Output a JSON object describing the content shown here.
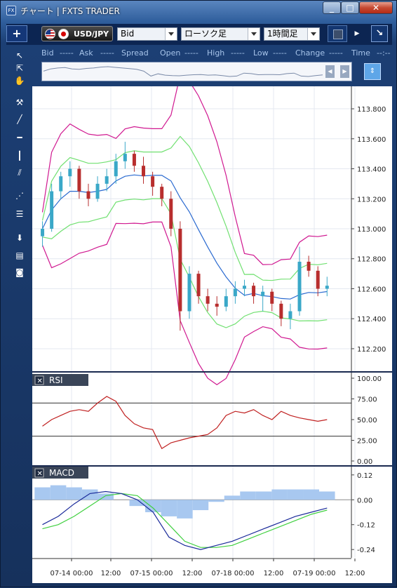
{
  "window": {
    "title": "チャート | FXTS TRADER",
    "icon_label": "FX"
  },
  "toolbar": {
    "add_label": "+",
    "symbol": "USD/JPY",
    "price_type": "Bid",
    "chart_type": "ローソク足",
    "timeframe": "1時間足",
    "arrow_label": "↘"
  },
  "quote_bar": {
    "bid_label": "Bid",
    "bid_value": "-----",
    "ask_label": "Ask",
    "ask_value": "-----",
    "spread_label": "Spread",
    "open_label": "Open",
    "open_value": "-----",
    "high_label": "High",
    "high_value": "-----",
    "low_label": "Low",
    "low_value": "-----",
    "change_label": "Change",
    "change_value": "-----",
    "time_label": "Time",
    "time_value": "--:--"
  },
  "colors": {
    "bull": "#3aa8c8",
    "bear": "#b82e2e",
    "bb_outer": "#d01890",
    "bb_inner": "#70e070",
    "ma": "#2a6ad0",
    "rsi": "#c02020",
    "macd": "#1a2a9a",
    "signal": "#40d040",
    "hist": "#a8c8f0"
  },
  "chart_data": {
    "type": "candlestick",
    "x_ticks": [
      "07-14 00:00",
      "12:00",
      "07-15 00:00",
      "12:00",
      "07-18 00:00",
      "12:00",
      "07-19 00:00",
      "12:00"
    ],
    "price": {
      "ylim": [
        112.05,
        113.95
      ],
      "y_ticks": [
        "113.800",
        "113.600",
        "113.400",
        "113.200",
        "113.000",
        "112.800",
        "112.600",
        "112.400",
        "112.200"
      ],
      "y_tick_values": [
        113.8,
        113.6,
        113.4,
        113.2,
        113.0,
        112.8,
        112.6,
        112.4,
        112.2
      ],
      "candles": [
        [
          112.95,
          113.05,
          112.88,
          113.0
        ],
        [
          113.0,
          113.3,
          112.98,
          113.25
        ],
        [
          113.25,
          113.38,
          113.2,
          113.35
        ],
        [
          113.35,
          113.45,
          113.28,
          113.4
        ],
        [
          113.4,
          113.42,
          113.2,
          113.25
        ],
        [
          113.25,
          113.3,
          113.15,
          113.2
        ],
        [
          113.2,
          113.35,
          113.18,
          113.3
        ],
        [
          113.3,
          113.4,
          113.25,
          113.35
        ],
        [
          113.35,
          113.5,
          113.3,
          113.45
        ],
        [
          113.45,
          113.58,
          113.4,
          113.5
        ],
        [
          113.5,
          113.52,
          113.38,
          113.42
        ],
        [
          113.42,
          113.48,
          113.3,
          113.35
        ],
        [
          113.35,
          113.38,
          113.22,
          113.28
        ],
        [
          113.28,
          113.3,
          113.15,
          113.2
        ],
        [
          113.2,
          113.25,
          112.95,
          113.0
        ],
        [
          113.0,
          113.05,
          112.32,
          112.45
        ],
        [
          112.45,
          112.75,
          112.4,
          112.7
        ],
        [
          112.7,
          112.72,
          112.5,
          112.55
        ],
        [
          112.55,
          112.6,
          112.45,
          112.5
        ],
        [
          112.5,
          112.55,
          112.42,
          112.48
        ],
        [
          112.48,
          112.6,
          112.45,
          112.55
        ],
        [
          112.55,
          112.65,
          112.5,
          112.6
        ],
        [
          112.6,
          112.66,
          112.55,
          112.62
        ],
        [
          112.62,
          112.64,
          112.5,
          112.55
        ],
        [
          112.55,
          112.62,
          112.45,
          112.58
        ],
        [
          112.58,
          112.6,
          112.45,
          112.5
        ],
        [
          112.5,
          112.52,
          112.35,
          112.4
        ],
        [
          112.4,
          112.5,
          112.33,
          112.45
        ],
        [
          112.45,
          112.88,
          112.42,
          112.78
        ],
        [
          112.78,
          112.82,
          112.68,
          112.72
        ],
        [
          112.72,
          112.75,
          112.55,
          112.6
        ],
        [
          112.6,
          112.68,
          112.55,
          112.62
        ]
      ]
    },
    "rsi": {
      "title": "RSI",
      "ylim": [
        0,
        100
      ],
      "y_ticks": [
        "100.00",
        "75.00",
        "50.00",
        "25.00",
        "0.00"
      ],
      "y_tick_values": [
        100,
        75,
        50,
        25,
        0
      ],
      "levels": [
        70,
        30
      ],
      "values": [
        42,
        50,
        55,
        60,
        62,
        60,
        70,
        78,
        72,
        55,
        45,
        40,
        38,
        15,
        22,
        25,
        28,
        30,
        32,
        40,
        55,
        60,
        58,
        62,
        55,
        50,
        60,
        55,
        52,
        50,
        48,
        50
      ]
    },
    "macd": {
      "title": "MACD",
      "ylim": [
        -0.28,
        0.16
      ],
      "y_ticks": [
        "0.12",
        "0.00",
        "-0.12",
        "-0.24"
      ],
      "y_tick_values": [
        0.12,
        0.0,
        -0.12,
        -0.24
      ],
      "macd": [
        -0.12,
        -0.08,
        -0.02,
        0.03,
        0.04,
        0.03,
        0.0,
        -0.06,
        -0.18,
        -0.22,
        -0.24,
        -0.22,
        -0.2,
        -0.17,
        -0.14,
        -0.11,
        -0.08,
        -0.06,
        -0.04
      ],
      "signal": [
        -0.14,
        -0.12,
        -0.08,
        -0.03,
        0.02,
        0.03,
        0.02,
        -0.04,
        -0.12,
        -0.2,
        -0.23,
        -0.23,
        -0.22,
        -0.19,
        -0.16,
        -0.13,
        -0.1,
        -0.07,
        -0.05
      ],
      "histogram": [
        0.06,
        0.07,
        0.06,
        0.05,
        0.03,
        0.0,
        -0.03,
        -0.06,
        -0.08,
        -0.09,
        -0.05,
        -0.01,
        0.02,
        0.04,
        0.04,
        0.05,
        0.05,
        0.05,
        0.04
      ]
    }
  }
}
